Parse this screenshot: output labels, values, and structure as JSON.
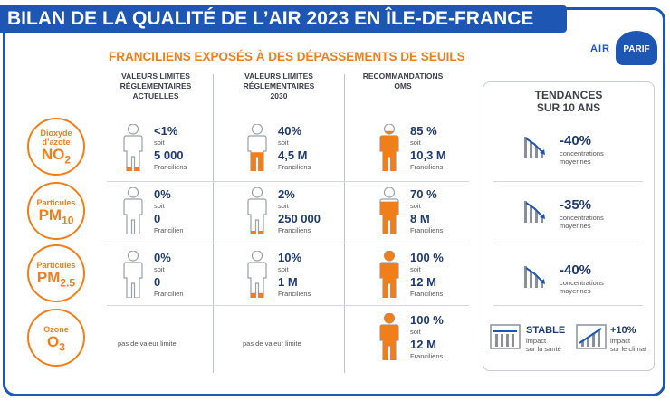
{
  "title": "BILAN DE LA QUALITÉ DE L’AIR 2023 EN ÎLE-DE-FRANCE",
  "subtitle": "FRANCILIENS EXPOSÉS À DES DÉPASSEMENTS DE SEUILS",
  "logo": {
    "text": "AIR",
    "badge": "PARIF"
  },
  "columns": [
    {
      "line1": "VALEURS LIMITES",
      "line2": "RÉGLEMENTAIRES",
      "line3": "ACTUELLES"
    },
    {
      "line1": "VALEURS LIMITES",
      "line2": "RÉGLEMENTAIRES",
      "line3": "2030"
    },
    {
      "line1": "RECOMMANDATIONS",
      "line2": "OMS",
      "line3": ""
    }
  ],
  "soit": "soit",
  "no_limit": "pas de valeur limite",
  "pollutants": [
    {
      "name": "Dioxyde d’azote",
      "name1": "Dioxyde",
      "name2": "d’azote",
      "sym": "NO",
      "sub": "2",
      "cells": [
        {
          "pct": "<1%",
          "count": "5 000",
          "unit": "Franciliens",
          "level": 0.05
        },
        {
          "pct": "40%",
          "count": "4,5 M",
          "unit": "Franciliens",
          "level": 0.4
        },
        {
          "pct": "85 %",
          "count": "10,3 M",
          "unit": "Franciliens",
          "level": 0.85
        }
      ]
    },
    {
      "name1": "Particules",
      "name2": "",
      "sym": "PM",
      "sub": "10",
      "cells": [
        {
          "pct": "0%",
          "count": "0",
          "unit": "Francilien",
          "level": 0
        },
        {
          "pct": "2%",
          "count": "250 000",
          "unit": "Franciliens",
          "level": 0.02
        },
        {
          "pct": "70 %",
          "count": "8 M",
          "unit": "Franciliens",
          "level": 0.7
        }
      ]
    },
    {
      "name1": "Particules",
      "name2": "",
      "sym": "PM",
      "sub": "2.5",
      "cells": [
        {
          "pct": "0%",
          "count": "0",
          "unit": "Francilien",
          "level": 0
        },
        {
          "pct": "10%",
          "count": "1 M",
          "unit": "Franciliens",
          "level": 0.1
        },
        {
          "pct": "100 %",
          "count": "12 M",
          "unit": "Franciliens",
          "level": 1.0
        }
      ]
    },
    {
      "name1": "Ozone",
      "name2": "",
      "sym": "O",
      "sub": "3",
      "cells": [
        null,
        null,
        {
          "pct": "100 %",
          "count": "12 M",
          "unit": "Franciliens",
          "level": 1.0
        }
      ]
    }
  ],
  "trends": {
    "title1": "TENDANCES",
    "title2": "SUR 10 ANS",
    "items": [
      {
        "value": "-40%",
        "label1": "concentrations",
        "label2": "moyennes"
      },
      {
        "value": "-35%",
        "label1": "concentrations",
        "label2": "moyennes"
      },
      {
        "value": "-40%",
        "label1": "concentrations",
        "label2": "moyennes"
      }
    ],
    "ozone": [
      {
        "value": "STABLE",
        "label1": "impact",
        "label2": "sur la santé"
      },
      {
        "value": "+10%",
        "label1": "impact",
        "label2": "sur le climat"
      }
    ]
  },
  "colors": {
    "blue": "#1e56b3",
    "orange": "#f07f1a",
    "navy": "#1e3a6e",
    "grey": "#8a8f98"
  }
}
